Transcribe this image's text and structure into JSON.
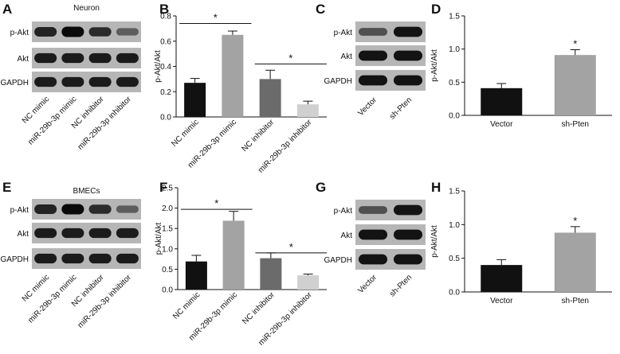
{
  "panel_letters": {
    "A": "A",
    "B": "B",
    "C": "C",
    "D": "D",
    "E": "E",
    "F": "F",
    "G": "G",
    "H": "H"
  },
  "blots": [
    {
      "panel": "A",
      "title": "Neuron",
      "rows": [
        "p-Akt",
        "Akt",
        "GAPDH"
      ],
      "lanes": [
        "NC mimic",
        "miR-29b-3p mimic",
        "NC inhibitor",
        "miR-29b-3p inhibitor"
      ],
      "intensity": [
        [
          0.85,
          1.0,
          0.8,
          0.45
        ],
        [
          0.9,
          0.9,
          0.9,
          0.9
        ],
        [
          0.9,
          0.9,
          0.9,
          0.9
        ]
      ]
    },
    {
      "panel": "C",
      "title": "",
      "rows": [
        "p-Akt",
        "Akt",
        "GAPDH"
      ],
      "lanes": [
        "Vector",
        "sh-Pten"
      ],
      "intensity": [
        [
          0.55,
          0.95
        ],
        [
          0.95,
          0.95
        ],
        [
          0.95,
          0.95
        ]
      ]
    },
    {
      "panel": "E",
      "title": "BMECs",
      "rows": [
        "p-Akt",
        "Akt",
        "GAPDH"
      ],
      "lanes": [
        "NC mimic",
        "miR-29b-3p mimic",
        "NC inhibitor",
        "miR-29b-3p inhibitor"
      ],
      "intensity": [
        [
          0.85,
          1.0,
          0.8,
          0.45
        ],
        [
          0.9,
          0.9,
          0.9,
          0.9
        ],
        [
          0.9,
          0.9,
          0.9,
          0.9
        ]
      ]
    },
    {
      "panel": "G",
      "title": "",
      "rows": [
        "p-Akt",
        "Akt",
        "GAPDH"
      ],
      "lanes": [
        "Vector",
        "sh-Pten"
      ],
      "intensity": [
        [
          0.55,
          0.95
        ],
        [
          0.95,
          0.95
        ],
        [
          0.95,
          0.95
        ]
      ]
    }
  ],
  "chart_data": [
    {
      "panel": "B",
      "type": "bar",
      "ylabel": "p-Akt/Akt",
      "ylim": [
        0,
        0.8
      ],
      "yticks": [
        "0.0",
        "0.2",
        "0.4",
        "0.6",
        "0.8"
      ],
      "categories": [
        "NC mimic",
        "miR-29b-3p mimic",
        "NC inhibitor",
        "miR-29b-3p inhibitor"
      ],
      "values": [
        0.27,
        0.65,
        0.3,
        0.1
      ],
      "errors": [
        0.035,
        0.03,
        0.07,
        0.025
      ],
      "colors": [
        "#111111",
        "#a3a3a3",
        "#6b6b6b",
        "#d0d0d0"
      ],
      "significance": [
        {
          "from": 0,
          "to": 1,
          "level": 0.74,
          "label": "*"
        },
        {
          "from": 2,
          "to": 3,
          "level": 0.42,
          "label": "*"
        }
      ],
      "grid": false
    },
    {
      "panel": "D",
      "type": "bar",
      "ylabel": "p-Akt/Akt",
      "ylim": [
        0,
        1.5
      ],
      "yticks": [
        "0.0",
        "0.5",
        "1.0",
        "1.5"
      ],
      "categories": [
        "Vector",
        "sh-Pten"
      ],
      "values": [
        0.41,
        0.91
      ],
      "errors": [
        0.07,
        0.08
      ],
      "colors": [
        "#111111",
        "#a3a3a3"
      ],
      "significance": [
        {
          "bar": 1,
          "label": "*"
        }
      ],
      "grid": false
    },
    {
      "panel": "F",
      "type": "bar",
      "ylabel": "p-Akt/Akt",
      "ylim": [
        0,
        2.5
      ],
      "yticks": [
        "0.0",
        "0.5",
        "1.0",
        "1.5",
        "2.0",
        "2.5"
      ],
      "categories": [
        "NC mimic",
        "miR-29b-3p mimic",
        "NC inhibitor",
        "miR-29b-3p inhibitor"
      ],
      "values": [
        0.69,
        1.69,
        0.77,
        0.35
      ],
      "errors": [
        0.15,
        0.23,
        0.13,
        0.03
      ],
      "colors": [
        "#111111",
        "#a3a3a3",
        "#6b6b6b",
        "#d0d0d0"
      ],
      "significance": [
        {
          "from": 0,
          "to": 1,
          "level": 1.97,
          "label": "*"
        },
        {
          "from": 2,
          "to": 3,
          "level": 0.9,
          "label": "*"
        }
      ],
      "grid": false
    },
    {
      "panel": "H",
      "type": "bar",
      "ylabel": "p-Akt/Akt",
      "ylim": [
        0,
        1.5
      ],
      "yticks": [
        "0.0",
        "0.5",
        "1.0",
        "1.5"
      ],
      "categories": [
        "Vector",
        "sh-Pten"
      ],
      "values": [
        0.4,
        0.88
      ],
      "errors": [
        0.08,
        0.09
      ],
      "colors": [
        "#111111",
        "#a3a3a3"
      ],
      "significance": [
        {
          "bar": 1,
          "label": "*"
        }
      ],
      "grid": false
    }
  ]
}
